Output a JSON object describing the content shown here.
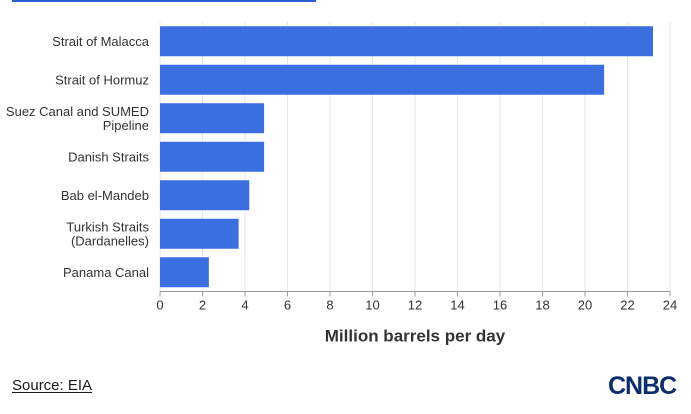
{
  "chart_data": {
    "type": "bar",
    "orientation": "horizontal",
    "categories": [
      [
        "Strait of Malacca"
      ],
      [
        "Strait of Hormuz"
      ],
      [
        "Suez Canal and SUMED",
        "Pipeline"
      ],
      [
        "Danish Straits"
      ],
      [
        "Bab el-Mandeb"
      ],
      [
        "Turkish Straits",
        "(Dardanelles)"
      ],
      [
        "Panama Canal"
      ]
    ],
    "values": [
      23.2,
      20.9,
      4.9,
      4.9,
      4.2,
      3.7,
      2.3
    ],
    "xlabel": "Million barrels per day",
    "xlim": [
      0,
      24
    ],
    "xticks": [
      0,
      2,
      4,
      6,
      8,
      10,
      12,
      14,
      16,
      18,
      20,
      22,
      24
    ],
    "grid": true,
    "bar_color": "#3b6fe0"
  },
  "footer": {
    "source": "Source: EIA",
    "logo": "CNBC"
  }
}
